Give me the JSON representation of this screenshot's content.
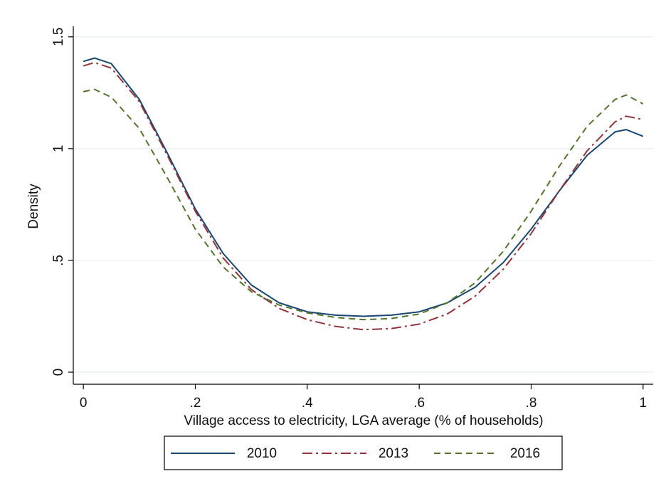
{
  "chart_data": {
    "type": "line",
    "xlabel": "Village access to electricity, LGA average (% of households)",
    "ylabel": "Density",
    "x": [
      0,
      0.02,
      0.05,
      0.1,
      0.15,
      0.2,
      0.25,
      0.3,
      0.35,
      0.4,
      0.45,
      0.5,
      0.55,
      0.6,
      0.65,
      0.7,
      0.75,
      0.8,
      0.85,
      0.9,
      0.95,
      0.97,
      1
    ],
    "series": [
      {
        "name": "2010",
        "color": "#1a476f",
        "dash": "solid",
        "values": [
          1.39,
          1.405,
          1.38,
          1.22,
          0.98,
          0.73,
          0.53,
          0.39,
          0.31,
          0.27,
          0.255,
          0.25,
          0.255,
          0.27,
          0.31,
          0.38,
          0.49,
          0.64,
          0.81,
          0.97,
          1.075,
          1.085,
          1.055
        ]
      },
      {
        "name": "2013",
        "color": "#90353b",
        "dash": "dashdot",
        "values": [
          1.37,
          1.385,
          1.36,
          1.21,
          0.97,
          0.72,
          0.51,
          0.37,
          0.285,
          0.235,
          0.205,
          0.19,
          0.195,
          0.215,
          0.26,
          0.34,
          0.46,
          0.62,
          0.81,
          0.99,
          1.12,
          1.145,
          1.13
        ]
      },
      {
        "name": "2016",
        "color": "#55752f",
        "dash": "dashed",
        "values": [
          1.255,
          1.265,
          1.23,
          1.09,
          0.87,
          0.64,
          0.47,
          0.36,
          0.3,
          0.265,
          0.245,
          0.235,
          0.24,
          0.26,
          0.31,
          0.4,
          0.54,
          0.72,
          0.92,
          1.1,
          1.22,
          1.24,
          1.2
        ]
      }
    ],
    "xlim": [
      -0.018,
      1.018
    ],
    "ylim": [
      -0.054,
      1.547
    ],
    "xticks": [
      0,
      {
        "value": 0.2,
        "label": ".2"
      },
      {
        "value": 0.4,
        "label": ".4"
      },
      {
        "value": 0.6,
        "label": ".6"
      },
      {
        "value": 0.8,
        "label": ".8"
      },
      1
    ],
    "yticks": [
      0,
      {
        "value": 0.5,
        "label": ".5"
      },
      1,
      1.5
    ],
    "grid": true,
    "legend": "bottom"
  }
}
